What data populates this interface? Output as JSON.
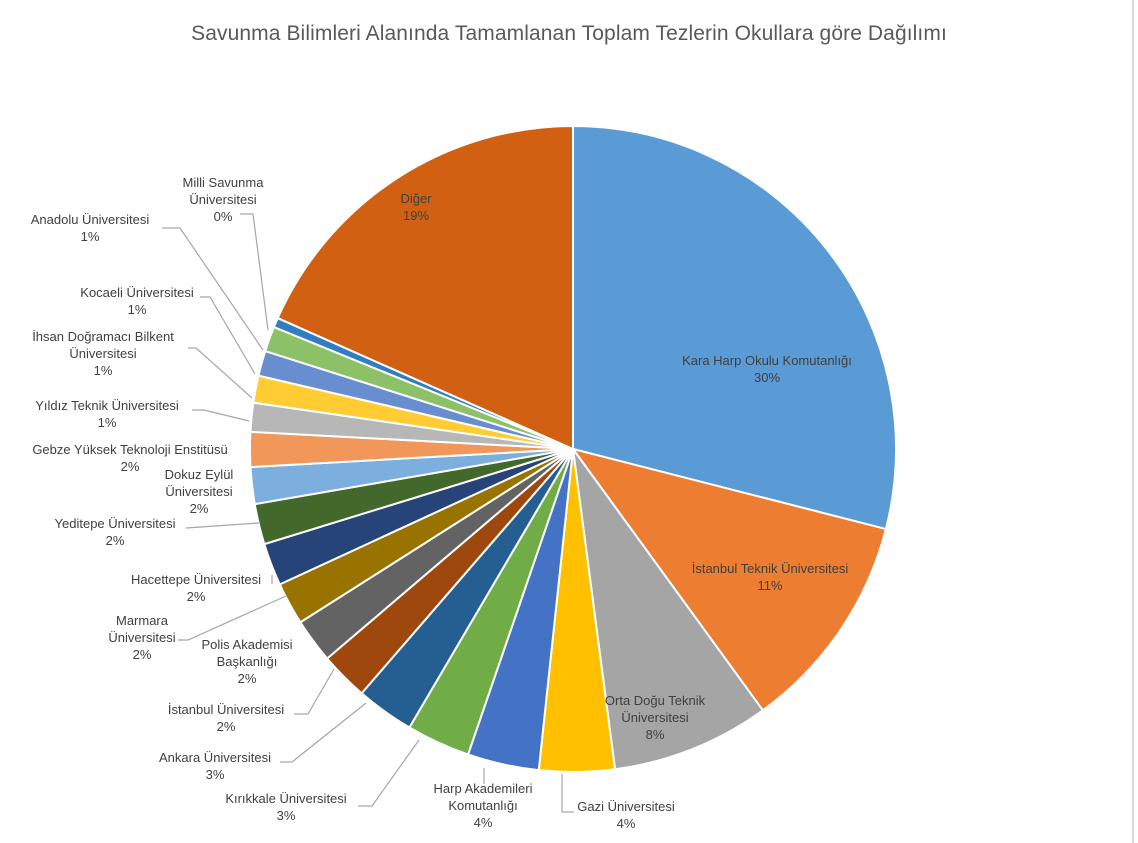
{
  "chart_data": {
    "type": "pie",
    "title": "Savunma Bilimleri Alanında Tamamlanan Toplam Tezlerin Okullara göre Dağılımı",
    "slices": [
      {
        "label": "Kara Harp Okulu Komutanlığı",
        "pct_label": "30%",
        "value": 30.0,
        "color": "#5b9bd5"
      },
      {
        "label": "İstanbul Teknik Üniversitesi",
        "pct_label": "11%",
        "value": 11.4,
        "color": "#ed7d31"
      },
      {
        "label": "Orta Doğu Teknik Üniversitesi",
        "pct_label": "8%",
        "value": 8.2,
        "color": "#a5a5a5"
      },
      {
        "label": "Gazi Üniversitesi",
        "pct_label": "4%",
        "value": 3.9,
        "color": "#ffc000"
      },
      {
        "label": "Harp Akademileri Komutanlığı",
        "pct_label": "4%",
        "value": 3.7,
        "color": "#4472c4"
      },
      {
        "label": "Kırıkkale Üniversitesi",
        "pct_label": "3%",
        "value": 3.3,
        "color": "#70ad47"
      },
      {
        "label": "Ankara Üniversitesi",
        "pct_label": "3%",
        "value": 3.0,
        "color": "#255e91"
      },
      {
        "label": "İstanbul Üniversitesi",
        "pct_label": "2%",
        "value": 2.5,
        "color": "#9e480e"
      },
      {
        "label": "Polis Akademisi Başkanlığı",
        "pct_label": "2%",
        "value": 2.3,
        "color": "#636363"
      },
      {
        "label": "Marmara Üniversitesi",
        "pct_label": "2%",
        "value": 2.2,
        "color": "#997300"
      },
      {
        "label": "Hacettepe Üniversitesi",
        "pct_label": "2%",
        "value": 2.2,
        "color": "#264478"
      },
      {
        "label": "Yeditepe Üniversitesi",
        "pct_label": "2%",
        "value": 2.1,
        "color": "#43682b"
      },
      {
        "label": "Dokuz Eylül Üniversitesi",
        "pct_label": "2%",
        "value": 1.9,
        "color": "#7cafdd"
      },
      {
        "label": "Gebze Yüksek Teknoloji Enstitüsü",
        "pct_label": "2%",
        "value": 1.8,
        "color": "#f1975a"
      },
      {
        "label": "Yıldız Teknik Üniversitesi",
        "pct_label": "1%",
        "value": 1.5,
        "color": "#b7b7b7"
      },
      {
        "label": "İhsan Doğramacı Bilkent Üniversitesi",
        "pct_label": "1%",
        "value": 1.4,
        "color": "#ffcd33"
      },
      {
        "label": "Kocaeli Üniversitesi",
        "pct_label": "1%",
        "value": 1.3,
        "color": "#698ed0"
      },
      {
        "label": "Anadolu Üniversitesi",
        "pct_label": "1%",
        "value": 1.3,
        "color": "#8cc168"
      },
      {
        "label": "Milli Savunma Üniversitesi",
        "pct_label": "0%",
        "value": 0.5,
        "color": "#327dc2"
      },
      {
        "label": "Diğer",
        "pct_label": "19%",
        "value": 19.0,
        "color": "#d26012"
      }
    ]
  }
}
